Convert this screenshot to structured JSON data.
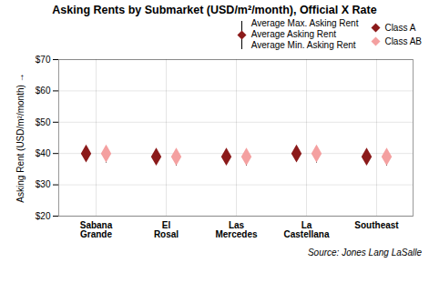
{
  "chart_data": {
    "type": "dot",
    "title": "Asking Rents by Submarket (USD/m²/month), Official X Rate",
    "ylabel": "Asking Rent (USD/m²/month)",
    "source": "Source: Jones Lang LaSalle",
    "categories": [
      "Sabana\nGrande",
      "El\nRosal",
      "Las\nMercedes",
      "La\nCastellana",
      "Southeast"
    ],
    "series": [
      {
        "name": "Class A",
        "color": "#8B1A1A",
        "marker": "diamond",
        "values": [
          40,
          39,
          39,
          40,
          39
        ],
        "max": [
          42,
          41,
          41,
          42,
          41
        ],
        "min": [
          38,
          37,
          37,
          38,
          37
        ]
      },
      {
        "name": "Class AB",
        "color": "#F4A0A0",
        "marker": "diamond",
        "values": [
          40,
          39,
          39,
          40,
          39
        ],
        "max": [
          42,
          41,
          41,
          42,
          41
        ],
        "min": [
          37,
          36,
          36,
          37,
          36
        ]
      }
    ],
    "range_legend": [
      "Average Max. Asking Rent",
      "Average Asking Rent",
      "Average Min. Asking Rent"
    ],
    "ylim": [
      20,
      70
    ],
    "yticks": [
      {
        "value": 20,
        "label": "$20"
      },
      {
        "value": 30,
        "label": "$30"
      },
      {
        "value": 40,
        "label": "$40"
      },
      {
        "value": 50,
        "label": "$50"
      },
      {
        "value": 60,
        "label": "$60"
      },
      {
        "value": 70,
        "label": "$70"
      }
    ],
    "grid": true
  }
}
